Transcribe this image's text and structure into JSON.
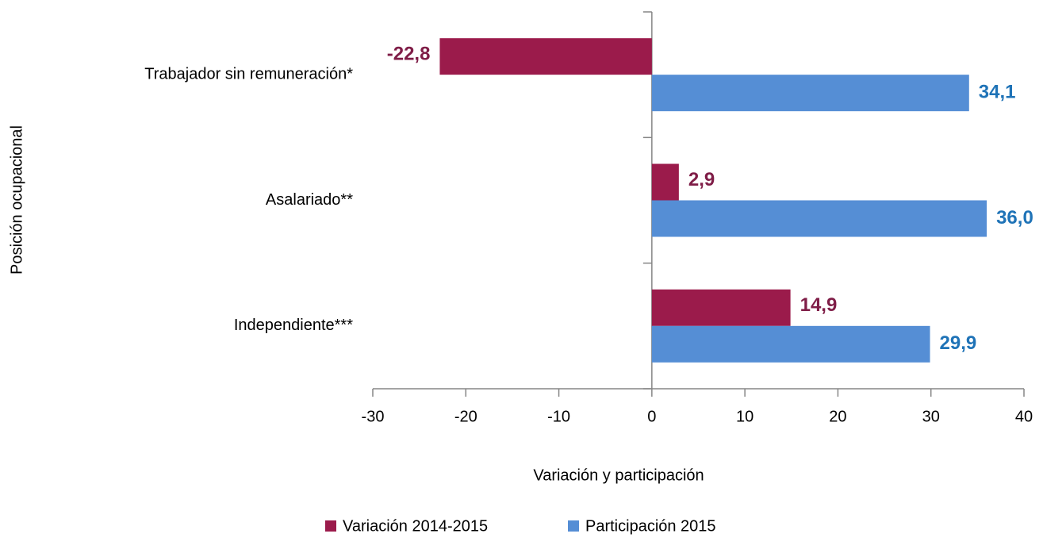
{
  "chart_data": {
    "type": "bar",
    "orientation": "horizontal",
    "x_axis_label": "Variación y participación",
    "y_axis_label": "Posición ocupacional",
    "categories": [
      "Trabajador sin remuneración*",
      "Asalariado**",
      "Independiente***"
    ],
    "series": [
      {
        "name": "Variación 2014-2015",
        "color": "#9b1b4b",
        "label_color": "#7f1d47",
        "values": [
          -22.8,
          2.9,
          14.9
        ],
        "value_labels": [
          "-22,8",
          "2,9",
          "14,9"
        ]
      },
      {
        "name": "Participación 2015",
        "color": "#558ed5",
        "label_color": "#1f73b7",
        "values": [
          34.1,
          36.0,
          29.9
        ],
        "value_labels": [
          "34,1",
          "36,0",
          "29,9"
        ]
      }
    ],
    "xlim": [
      -30,
      40
    ],
    "xticks": [
      -30,
      -20,
      -10,
      0,
      10,
      20,
      30,
      40
    ],
    "legend": "bottom"
  }
}
